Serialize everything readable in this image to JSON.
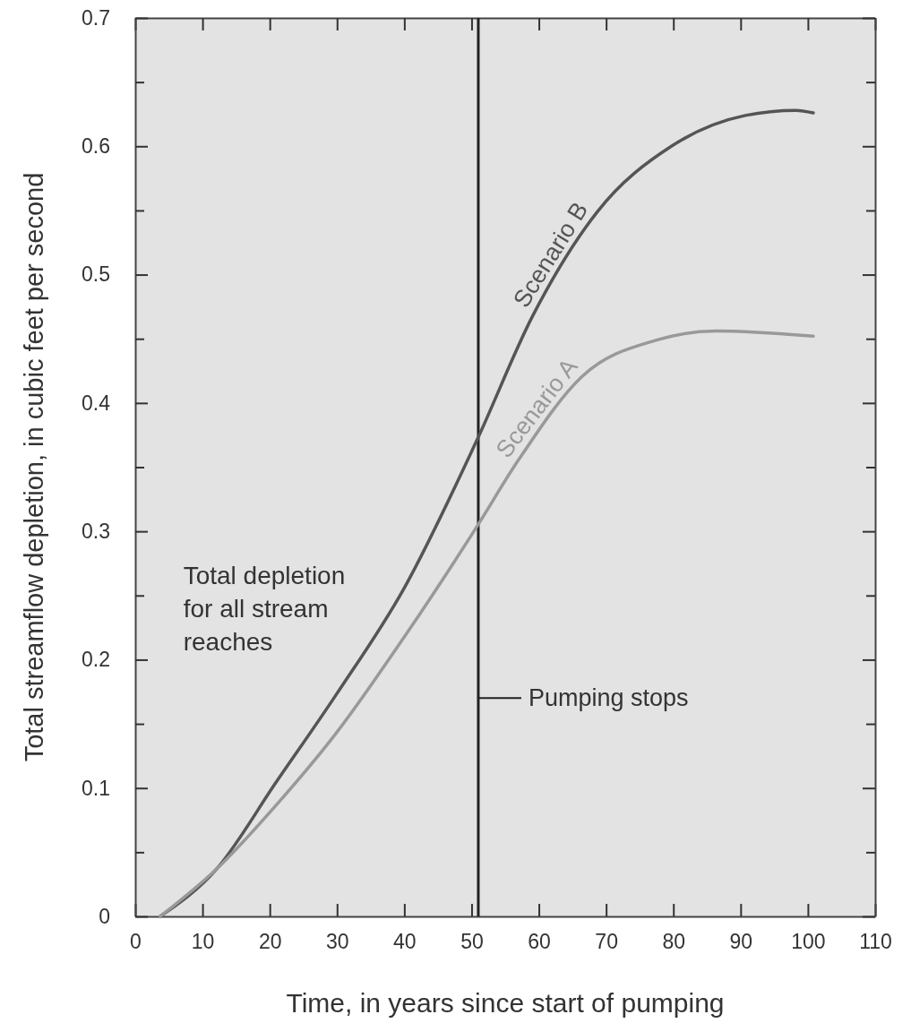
{
  "chart_data": {
    "type": "line",
    "xlabel": "Time, in years since start of pumping",
    "ylabel": "Total streamflow depletion, in cubic feet per second",
    "xlim": [
      0,
      110
    ],
    "xticks": [
      0,
      10,
      20,
      30,
      40,
      50,
      60,
      70,
      80,
      90,
      100,
      110
    ],
    "ylim": [
      0,
      0.7
    ],
    "yticks": [
      0,
      {
        "value": 0.05,
        "label": null
      },
      0.1,
      {
        "value": 0.15,
        "label": null
      },
      0.2,
      {
        "value": 0.25,
        "label": null
      },
      0.3,
      {
        "value": 0.35,
        "label": null
      },
      0.4,
      {
        "value": 0.45,
        "label": null
      },
      0.5,
      {
        "value": 0.55,
        "label": null
      },
      0.6,
      {
        "value": 0.65,
        "label": null
      },
      0.7
    ],
    "grid": false,
    "marker": "none",
    "line_style": "solid",
    "series": [
      {
        "name": "Scenario B",
        "color": "#555555",
        "x": [
          3.7,
          12.1,
          21,
          29.9,
          39.9,
          50.7,
          59.1,
          68.7,
          79.7,
          90.7,
          98.2,
          100.8
        ],
        "values": [
          0,
          0.037,
          0.105,
          0.173,
          0.255,
          0.37,
          0.468,
          0.549,
          0.6,
          0.624,
          0.628,
          0.626
        ]
      },
      {
        "name": "Scenario A",
        "color": "#999999",
        "x": [
          3.7,
          12.1,
          21,
          29.9,
          39.9,
          50.7,
          56.9,
          66.5,
          77.5,
          86.3,
          100.8
        ],
        "values": [
          0,
          0.037,
          0.087,
          0.143,
          0.217,
          0.303,
          0.355,
          0.421,
          0.449,
          0.456,
          0.452
        ]
      }
    ],
    "ref_lines": [
      {
        "axis": "x",
        "value": 51,
        "label": "Pumping stops",
        "color": "#222222"
      }
    ],
    "annotations": [
      "Total depletion for all stream reaches"
    ]
  }
}
